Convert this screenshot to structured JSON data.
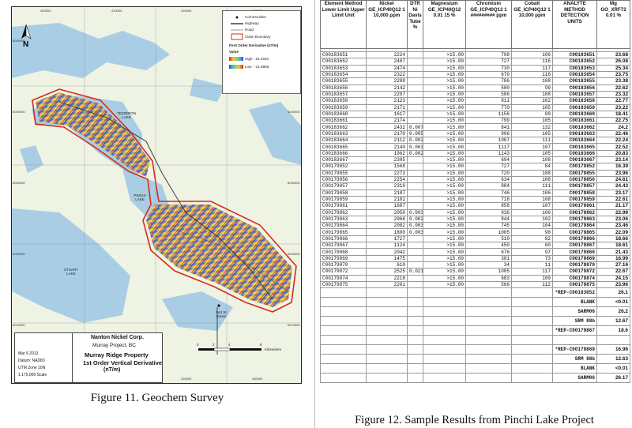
{
  "map": {
    "coords_top": [
      "400000",
      "410000",
      "420000",
      "430000"
    ],
    "coords_bottom": [
      "400000",
      "410000",
      "420000",
      "430000"
    ],
    "coords_left": [
      "6050000",
      "6040000",
      "6030000",
      "6020000",
      "6010000"
    ],
    "coords_right": [
      "6050000",
      "6040000",
      "6030000",
      "6020000",
      "6010000"
    ],
    "north_label": "N",
    "legend": {
      "communities": "Communities",
      "highway": "Highway",
      "road": "Road",
      "claim_boundary": "Claim Boundary",
      "derivative_title": "First Order Derivative (nT/m)",
      "value_label": "Value",
      "high": "High : 19.2926",
      "low": "Low : -21.8955"
    },
    "labels": {
      "tezzeron_lake": "TEZZERON LAKE",
      "pinchi_lake": "PINCHI LAKE",
      "stuart_lake": "STUART LAKE",
      "fort_st_james": "Fort St. James"
    },
    "scalebar": {
      "ticks": [
        "0",
        "2",
        "4",
        "8"
      ],
      "unit": "Kilometers"
    },
    "titleblock": {
      "company": "Nanton Nickel Corp.",
      "project": "Murray Project, BC",
      "property": "Murray Ridge Property",
      "subtitle": "1st Order Vertical Derivative",
      "units": "(nT/m)",
      "date": "Mar 9 2013",
      "datum": "Datum: NAD83",
      "utm": "UTM Zone 10N",
      "scale": "1:175,000 Scale"
    }
  },
  "fig11_caption": "Figure 11. Geochem Survey",
  "fig12_caption": "Figure 12. Sample Results from Pinchi Lake Project",
  "table": {
    "headers": [
      "Element Method Lower Limit Upper Limit Unit",
      "Nickel GE_ICP40Q12 1 10,000 ppm",
      "DTR Ni Davis Tube %",
      "Magnesium GE_ICP40Q12 0.01 15 %",
      "Chromium GE_ICP40Q12 1 ######### ppm",
      "Cobalt GE_ICP40Q12 1 10,000 ppm",
      "ANALYTE METHOD DETECTION UNITS",
      "Mg GO_XRF72 0.01 %"
    ],
    "rows": [
      [
        "C00183651",
        "2224",
        "",
        ">15.00",
        "798",
        "106",
        "C00183651",
        "23.68"
      ],
      [
        "C00183652",
        "2467",
        "",
        ">15.00",
        "727",
        "116",
        "C00183652",
        "26.08"
      ],
      [
        "C00183653",
        "2474",
        "",
        ">15.00",
        "730",
        "117",
        "C00183653",
        "25.34"
      ],
      [
        "C00183654",
        "2322",
        "",
        ">15.00",
        "679",
        "116",
        "C00183654",
        "23.75"
      ],
      [
        "C00183655",
        "2288",
        "",
        ">15.00",
        "786",
        "108",
        "C00183655",
        "23.38"
      ],
      [
        "C00183656",
        "2142",
        "",
        ">15.00",
        "580",
        "99",
        "C00183656",
        "22.62"
      ],
      [
        "C00183657",
        "2297",
        "",
        ">15.00",
        "586",
        "108",
        "C00183657",
        "23.32"
      ],
      [
        "C00183658",
        "2123",
        "",
        ">15.00",
        "811",
        "102",
        "C00183658",
        "22.77"
      ],
      [
        "C00183659",
        "2171",
        "",
        ">15.00",
        "770",
        "105",
        "C00183659",
        "23.22"
      ],
      [
        "C00183660",
        "1617",
        "",
        ">15.00",
        "1156",
        "89",
        "C00183660",
        "18.41"
      ],
      [
        "C00183661",
        "2174",
        "",
        ">15.00",
        "799",
        "105",
        "C00183661",
        "22.75"
      ],
      [
        "C00183662",
        "2432",
        "0.007",
        ">15.00",
        "841",
        "132",
        "C00183662",
        "24.2"
      ],
      [
        "C00183663",
        "2170",
        "0.005",
        ">15.00",
        "906",
        "105",
        "C00183663",
        "22.46"
      ],
      [
        "C00183664",
        "2112",
        "0.002",
        ">15.00",
        "1007",
        "111",
        "C00183664",
        "22.24"
      ],
      [
        "C00183665",
        "2140",
        "0.003",
        ">15.00",
        "1117",
        "107",
        "C00183665",
        "22.52"
      ],
      [
        "C00183666",
        "1962",
        "0.002",
        ">15.00",
        "1143",
        "105",
        "C00183666",
        "20.83"
      ],
      [
        "C00183667",
        "2305",
        "",
        ">15.00",
        "694",
        "108",
        "C00183667",
        "23.14"
      ],
      [
        "C00179852",
        "1568",
        "",
        ">15.00",
        "727",
        "84",
        "C00179852",
        "16.39"
      ],
      [
        "C00179855",
        "2273",
        "",
        ">15.00",
        "720",
        "108",
        "C00179855",
        "23.96"
      ],
      [
        "C00179856",
        "2254",
        "",
        ">15.00",
        "634",
        "108",
        "C00179856",
        "24.61"
      ],
      [
        "C00179857",
        "2319",
        "",
        ">15.00",
        "884",
        "111",
        "C00179857",
        "24.43"
      ],
      [
        "C00179858",
        "2187",
        "",
        ">15.00",
        "746",
        "106",
        "C00179858",
        "23.17"
      ],
      [
        "C00179859",
        "2182",
        "",
        ">15.00",
        "718",
        "108",
        "C00179859",
        "22.61"
      ],
      [
        "C00179861",
        "1687",
        "",
        ">15.00",
        "858",
        "107",
        "C00179861",
        "21.17"
      ],
      [
        "C00179862",
        "2050",
        "0.003",
        ">15.00",
        "936",
        "106",
        "C00179862",
        "22.99"
      ],
      [
        "C00179863",
        "2066",
        "0.002",
        ">15.00",
        "844",
        "102",
        "C00179863",
        "23.06"
      ],
      [
        "C00179864",
        "2082",
        "0.003",
        ">15.00",
        "745",
        "104",
        "C00179864",
        "23.46"
      ],
      [
        "C00179865",
        "1800",
        "0.003",
        ">15.00",
        "1005",
        "98",
        "C00179865",
        "22.09"
      ],
      [
        "C00179866",
        "1727",
        "",
        ">15.00",
        "510",
        "82",
        "C00179866",
        "18.66"
      ],
      [
        "C00179867",
        "1124",
        "",
        ">15.00",
        "450",
        "60",
        "C00179867",
        "18.61"
      ],
      [
        "C00179868",
        "2042",
        "",
        ">15.00",
        "676",
        "97",
        "C00179868",
        "21.43"
      ],
      [
        "C00179869",
        "1475",
        "",
        ">15.00",
        "381",
        "73",
        "C00179869",
        "16.99"
      ],
      [
        "C00179870",
        "610",
        "",
        ">15.00",
        "34",
        "11",
        "C00179870",
        "27.16"
      ],
      [
        "C00179872",
        "2525",
        "0.021",
        ">15.00",
        "1005",
        "117",
        "C00179872",
        "22.67"
      ],
      [
        "C00179874",
        "2218",
        "",
        ">15.00",
        "683",
        "109",
        "C00179874",
        "24.15"
      ],
      [
        "C00179875",
        "2261",
        "",
        ">15.00",
        "566",
        "112",
        "C00179875",
        "23.96"
      ]
    ],
    "qc_rows": [
      [
        "*REP-C00183652",
        "26.1"
      ],
      [
        "BLANK",
        "<0.01"
      ],
      [
        "SARM06",
        "26.2"
      ],
      [
        "SRM 88b",
        "12.67"
      ],
      [
        "*REP-C00179867",
        "18.6"
      ],
      [
        "",
        ""
      ],
      [
        "*REP-C00179869",
        "16.96"
      ],
      [
        "SRM 88b",
        "12.63"
      ],
      [
        "BLANK",
        "<0.01"
      ],
      [
        "SARM06",
        "26.17"
      ]
    ]
  }
}
